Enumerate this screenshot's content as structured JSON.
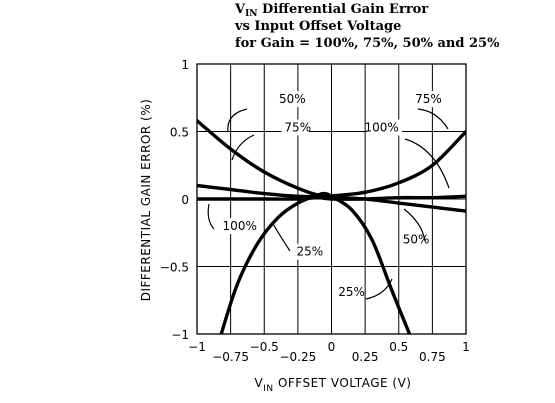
{
  "chart_data": {
    "type": "line",
    "title_lines": [
      {
        "main": "V",
        "sub": "IN",
        "rest": " Differential Gain Error"
      },
      {
        "main": "vs Input Offset Voltage",
        "sub": "",
        "rest": ""
      },
      {
        "main": "for Gain = 100%, 75%, 50% and 25%",
        "sub": "",
        "rest": ""
      }
    ],
    "xlabel": {
      "main": "V",
      "sub": "IN",
      "rest": " OFFSET VOLTAGE (V)"
    },
    "ylabel": "DIFFERENTIAL GAIN ERROR (%)",
    "xlim": [
      -1,
      1
    ],
    "ylim": [
      -1,
      1
    ],
    "grid": true,
    "xticks_upper": [
      "-1",
      "-0.5",
      "0",
      "0.5",
      "1"
    ],
    "xticks_upper_values": [
      -1,
      -0.5,
      0,
      0.5,
      1
    ],
    "xticks_lower": [
      "-0.75",
      "-0.25",
      "0.25",
      "0.75"
    ],
    "xticks_lower_values": [
      -0.75,
      -0.25,
      0.25,
      0.75
    ],
    "yticks": [
      "1",
      "0.5",
      "0",
      "-0.5",
      "-1"
    ],
    "yticks_values": [
      1,
      0.5,
      0,
      -0.5,
      -1
    ],
    "series": [
      {
        "name": "100%",
        "x": [
          -1,
          -0.75,
          -0.5,
          -0.25,
          -0.1,
          0,
          0.25,
          0.5,
          0.75,
          1
        ],
        "y": [
          0.0,
          0.0,
          0.0,
          0.0,
          0.01,
          0.0,
          0.0,
          0.01,
          0.01,
          0.02
        ]
      },
      {
        "name": "75%",
        "x": [
          -1,
          -0.75,
          -0.5,
          -0.25,
          -0.05,
          0.25,
          0.5,
          0.75,
          1
        ],
        "y": [
          0.1,
          0.07,
          0.04,
          0.02,
          0.02,
          0.05,
          0.12,
          0.25,
          0.5
        ]
      },
      {
        "name": "50%",
        "x": [
          -1,
          -0.75,
          -0.5,
          -0.25,
          -0.05,
          0.25,
          0.5,
          0.75,
          1
        ],
        "y": [
          0.58,
          0.37,
          0.2,
          0.08,
          0.02,
          0.0,
          -0.03,
          -0.06,
          -0.09
        ]
      },
      {
        "name": "25%",
        "x": [
          -0.82,
          -0.7,
          -0.55,
          -0.4,
          -0.25,
          -0.1,
          -0.05,
          0.0,
          0.15,
          0.3,
          0.45,
          0.58
        ],
        "y": [
          -1.0,
          -0.63,
          -0.33,
          -0.14,
          -0.03,
          0.03,
          0.04,
          0.02,
          -0.08,
          -0.3,
          -0.68,
          -1.0
        ]
      }
    ],
    "annotations": [
      {
        "label": "50%",
        "x": -0.39,
        "y": 0.71,
        "anchor": "start"
      },
      {
        "label": "75%",
        "x": -0.35,
        "y": 0.5,
        "anchor": "start"
      },
      {
        "label": "75%",
        "x": 0.82,
        "y": 0.71,
        "anchor": "end"
      },
      {
        "label": "100%",
        "x": 0.5,
        "y": 0.5,
        "anchor": "end"
      },
      {
        "label": "100%",
        "x": -0.81,
        "y": -0.23,
        "anchor": "start"
      },
      {
        "label": "25%",
        "x": -0.26,
        "y": -0.42,
        "anchor": "start"
      },
      {
        "label": "50%",
        "x": 0.53,
        "y": -0.33,
        "anchor": "start"
      },
      {
        "label": "25%",
        "x": 0.05,
        "y": -0.72,
        "anchor": "start"
      }
    ]
  }
}
